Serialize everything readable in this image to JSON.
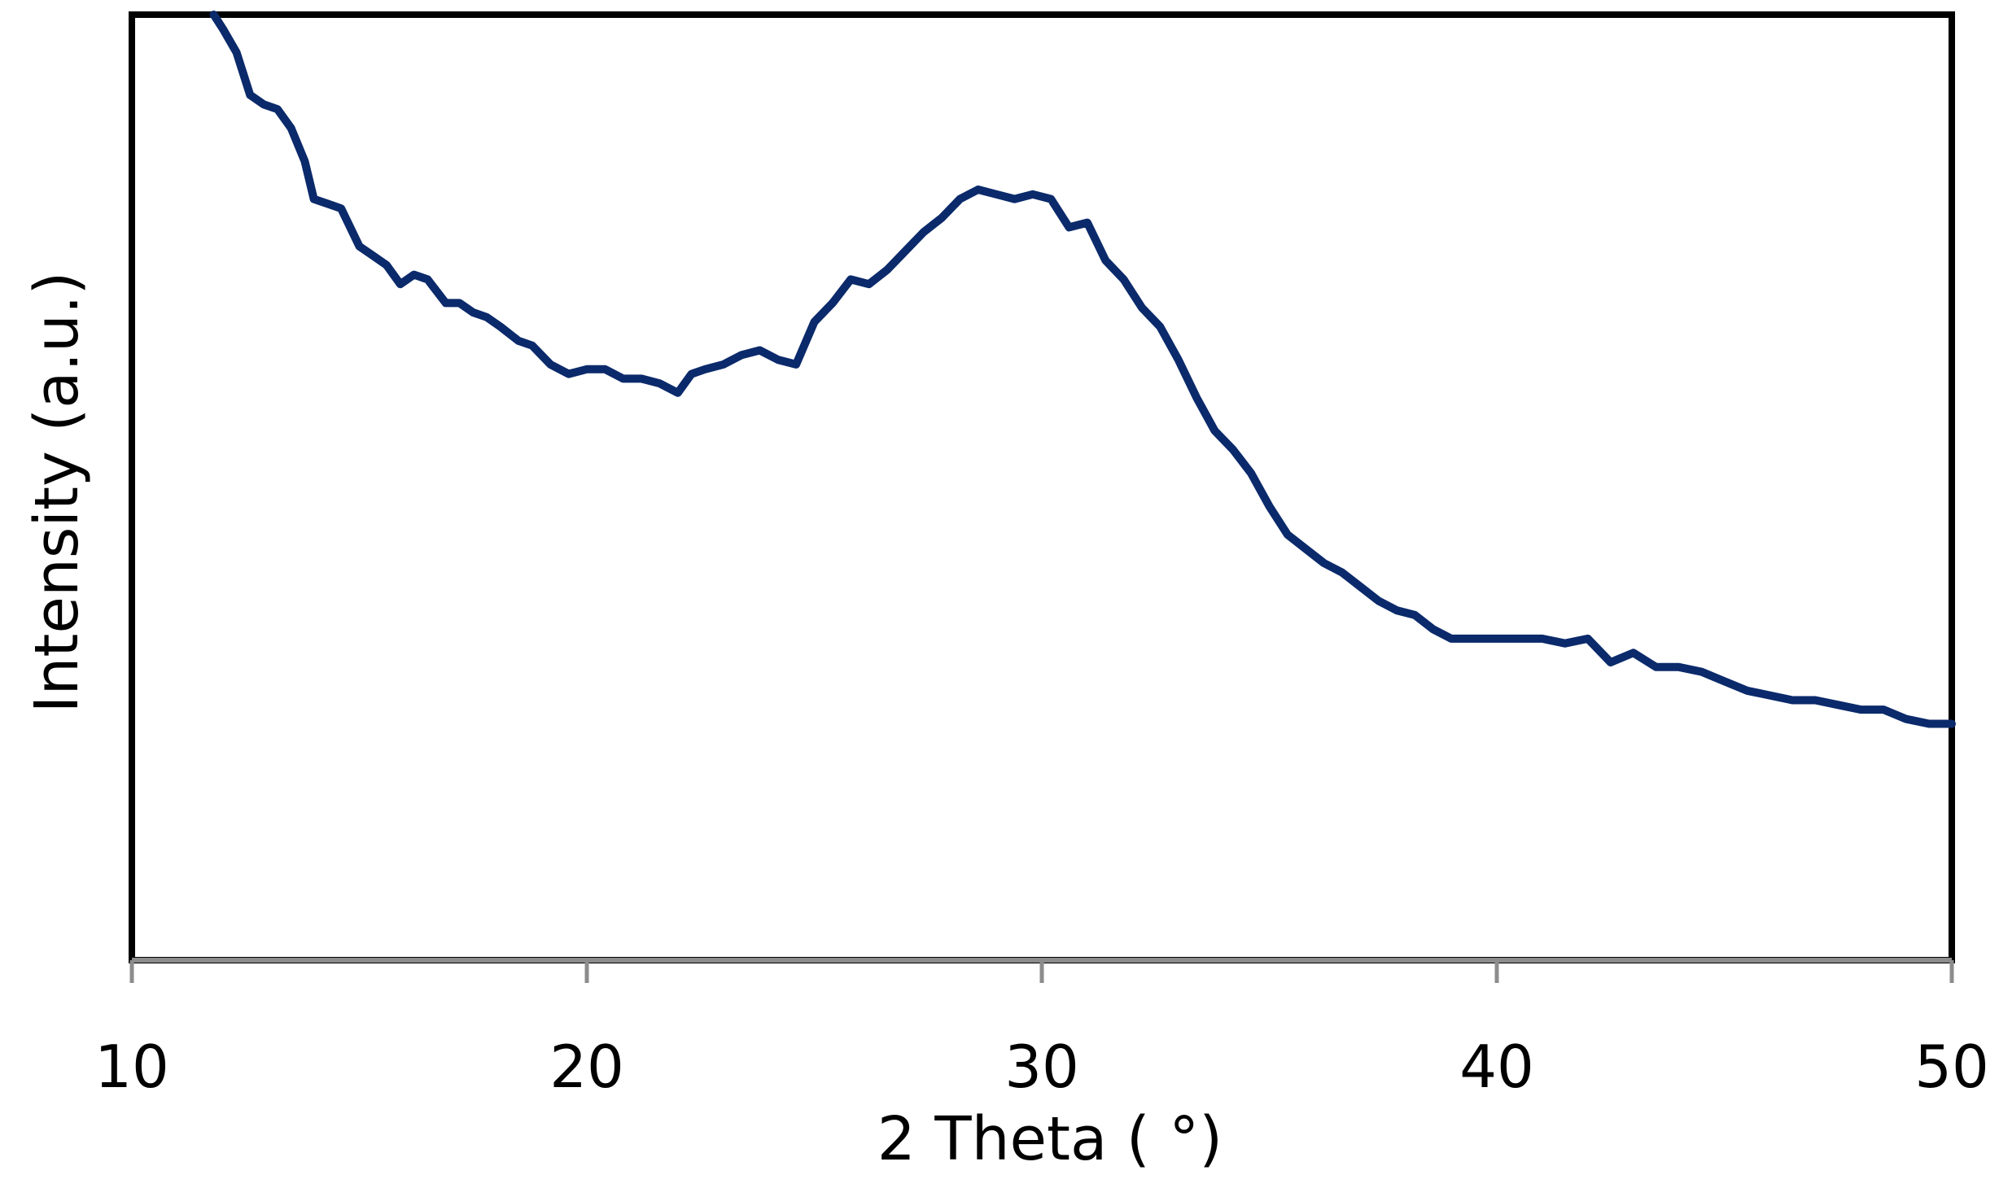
{
  "chart_data": {
    "type": "line",
    "title": "",
    "xlabel": "2 Theta ( °)",
    "ylabel": "Intensity (a.u.)",
    "xlim": [
      10,
      50
    ],
    "ylim": [
      0,
      100
    ],
    "x_ticks": [
      10,
      20,
      30,
      40,
      50
    ],
    "y_ticks_labeled": false,
    "grid": false,
    "legend": "none",
    "line_color": "#0b2a6b",
    "series": [
      {
        "x": [
          11.8,
          12.0,
          12.3,
          12.6,
          12.9,
          13.2,
          13.5,
          13.8,
          14.0,
          14.3,
          14.6,
          15.0,
          15.3,
          15.6,
          15.9,
          16.2,
          16.5,
          16.9,
          17.2,
          17.5,
          17.8,
          18.1,
          18.5,
          18.8,
          19.2,
          19.6,
          20.0,
          20.4,
          20.8,
          21.2,
          21.6,
          22.0,
          22.3,
          22.6,
          23.0,
          23.4,
          23.8,
          24.2,
          24.6,
          25.0,
          25.4,
          25.8,
          26.2,
          26.6,
          27.0,
          27.4,
          27.8,
          28.2,
          28.6,
          29.0,
          29.4,
          29.8,
          30.2,
          30.6,
          31.0,
          31.4,
          31.8,
          32.2,
          32.6,
          33.0,
          33.4,
          33.8,
          34.2,
          34.6,
          35.0,
          35.4,
          35.8,
          36.2,
          36.6,
          37.0,
          37.4,
          37.8,
          38.2,
          38.6,
          39.0,
          39.5,
          40.0,
          40.5,
          41.0,
          41.5,
          42.0,
          42.5,
          43.0,
          43.5,
          44.0,
          44.5,
          45.0,
          45.5,
          46.0,
          46.5,
          47.0,
          47.5,
          48.0,
          48.5,
          49.0,
          49.5,
          50.0
        ],
        "y": [
          100.0,
          98.5,
          96.0,
          91.5,
          90.5,
          90.0,
          88.0,
          84.5,
          80.5,
          80.0,
          79.5,
          75.5,
          74.5,
          73.5,
          71.5,
          72.5,
          72.0,
          69.5,
          69.5,
          68.5,
          68.0,
          67.0,
          65.5,
          65.0,
          63.0,
          62.0,
          62.5,
          62.5,
          61.5,
          61.5,
          61.0,
          60.0,
          62.0,
          62.5,
          63.0,
          64.0,
          64.5,
          63.5,
          63.0,
          67.5,
          69.5,
          72.0,
          71.5,
          73.0,
          75.0,
          77.0,
          78.5,
          80.5,
          81.5,
          81.0,
          80.5,
          81.0,
          80.5,
          77.5,
          78.0,
          74.0,
          72.0,
          69.0,
          67.0,
          63.5,
          59.5,
          56.0,
          54.0,
          51.5,
          48.0,
          45.0,
          43.5,
          42.0,
          41.0,
          39.5,
          38.0,
          37.0,
          36.5,
          35.0,
          34.0,
          34.0,
          34.0,
          34.0,
          34.0,
          33.5,
          34.0,
          31.5,
          32.5,
          31.0,
          31.0,
          30.5,
          29.5,
          28.5,
          28.0,
          27.5,
          27.5,
          27.0,
          26.5,
          26.5,
          25.5,
          25.0,
          25.0
        ]
      }
    ]
  }
}
